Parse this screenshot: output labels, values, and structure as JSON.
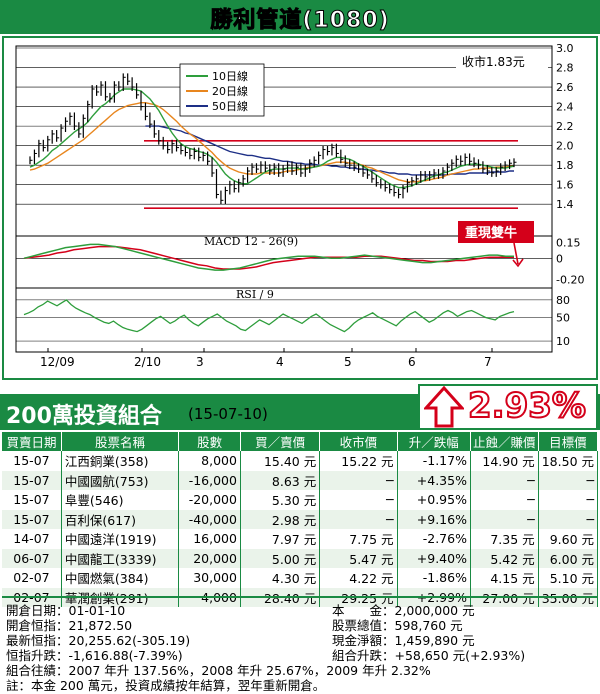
{
  "header": {
    "title": "勝利管道(1080)"
  },
  "chart_data": {
    "type": "line",
    "price_panel": {
      "close_label": "收市1.83元",
      "y_ticks": [
        1.4,
        1.6,
        1.8,
        2.0,
        2.2,
        2.4,
        2.6,
        2.8,
        3.0
      ],
      "y_tick_labels": [
        "1.4",
        "1.6",
        "1.8",
        "2.0",
        "2.2",
        "2.4",
        "2.6",
        "2.8",
        "3.0"
      ],
      "ylim": [
        1.3,
        3.0
      ],
      "legend": [
        "10日線",
        "20日線",
        "50日線"
      ],
      "series_colors": [
        "#2e9e3c",
        "#e8861e",
        "#1d2f86"
      ],
      "price_color": "#000000",
      "resistance": 2.05,
      "support": 1.36,
      "line_color": "#d4001a",
      "price": [
        1.85,
        1.92,
        2.02,
        1.98,
        2.06,
        2.12,
        2.08,
        2.18,
        2.25,
        2.3,
        2.2,
        2.12,
        2.28,
        2.42,
        2.58,
        2.55,
        2.62,
        2.5,
        2.48,
        2.62,
        2.6,
        2.7,
        2.66,
        2.6,
        2.52,
        2.4,
        2.3,
        2.22,
        2.12,
        2.05,
        2.0,
        1.96,
        2.02,
        1.98,
        1.95,
        1.93,
        1.9,
        1.94,
        1.88,
        1.9,
        1.84,
        1.72,
        1.5,
        1.44,
        1.54,
        1.6,
        1.56,
        1.62,
        1.66,
        1.74,
        1.78,
        1.76,
        1.8,
        1.77,
        1.74,
        1.78,
        1.72,
        1.76,
        1.8,
        1.74,
        1.78,
        1.72,
        1.76,
        1.82,
        1.85,
        1.9,
        1.96,
        1.94,
        1.98,
        1.92,
        1.86,
        1.82,
        1.8,
        1.78,
        1.76,
        1.72,
        1.7,
        1.66,
        1.62,
        1.6,
        1.57,
        1.55,
        1.52,
        1.5,
        1.56,
        1.62,
        1.64,
        1.66,
        1.7,
        1.68,
        1.7,
        1.72,
        1.7,
        1.74,
        1.78,
        1.82,
        1.86,
        1.84,
        1.88,
        1.84,
        1.82,
        1.8,
        1.76,
        1.74,
        1.72,
        1.74,
        1.78,
        1.8,
        1.82,
        1.83
      ],
      "ma10": [
        1.78,
        1.8,
        1.83,
        1.86,
        1.9,
        1.95,
        1.98,
        2.02,
        2.06,
        2.1,
        2.14,
        2.17,
        2.2,
        2.24,
        2.3,
        2.35,
        2.4,
        2.43,
        2.47,
        2.52,
        2.55,
        2.58,
        2.58,
        2.58,
        2.57,
        2.56,
        2.52,
        2.48,
        2.42,
        2.36,
        2.28,
        2.2,
        2.13,
        2.07,
        2.02,
        1.99,
        1.97,
        1.96,
        1.94,
        1.93,
        1.91,
        1.88,
        1.83,
        1.77,
        1.71,
        1.67,
        1.64,
        1.62,
        1.61,
        1.61,
        1.64,
        1.67,
        1.7,
        1.73,
        1.75,
        1.76,
        1.76,
        1.76,
        1.77,
        1.77,
        1.77,
        1.76,
        1.76,
        1.77,
        1.78,
        1.79,
        1.81,
        1.84,
        1.86,
        1.88,
        1.88,
        1.87,
        1.86,
        1.84,
        1.81,
        1.79,
        1.76,
        1.73,
        1.7,
        1.67,
        1.64,
        1.61,
        1.59,
        1.57,
        1.57,
        1.58,
        1.59,
        1.61,
        1.63,
        1.65,
        1.67,
        1.69,
        1.7,
        1.72,
        1.73,
        1.75,
        1.77,
        1.79,
        1.8,
        1.81,
        1.81,
        1.81,
        1.8,
        1.79,
        1.78,
        1.77,
        1.77,
        1.77,
        1.78,
        1.79
      ],
      "ma20": [
        1.75,
        1.76,
        1.78,
        1.8,
        1.82,
        1.85,
        1.88,
        1.91,
        1.94,
        1.97,
        2.0,
        2.03,
        2.06,
        2.1,
        2.14,
        2.18,
        2.22,
        2.26,
        2.3,
        2.34,
        2.37,
        2.39,
        2.41,
        2.42,
        2.43,
        2.44,
        2.44,
        2.43,
        2.42,
        2.4,
        2.37,
        2.33,
        2.29,
        2.25,
        2.2,
        2.16,
        2.12,
        2.09,
        2.05,
        2.01,
        1.97,
        1.93,
        1.88,
        1.84,
        1.8,
        1.77,
        1.75,
        1.73,
        1.72,
        1.71,
        1.71,
        1.71,
        1.72,
        1.72,
        1.72,
        1.72,
        1.72,
        1.73,
        1.74,
        1.74,
        1.75,
        1.76,
        1.77,
        1.78,
        1.78,
        1.79,
        1.8,
        1.81,
        1.82,
        1.83,
        1.83,
        1.83,
        1.82,
        1.82,
        1.81,
        1.8,
        1.78,
        1.77,
        1.75,
        1.73,
        1.71,
        1.69,
        1.67,
        1.65,
        1.64,
        1.63,
        1.63,
        1.63,
        1.64,
        1.64,
        1.65,
        1.66,
        1.67,
        1.68,
        1.7,
        1.71,
        1.72,
        1.73,
        1.74,
        1.75,
        1.76,
        1.76,
        1.77,
        1.77,
        1.77,
        1.78,
        1.78,
        1.78,
        1.79,
        1.79
      ],
      "ma50": [
        null,
        null,
        null,
        null,
        null,
        null,
        null,
        null,
        null,
        null,
        null,
        null,
        null,
        null,
        null,
        null,
        null,
        null,
        null,
        null,
        null,
        null,
        null,
        null,
        null,
        null,
        2.2,
        2.2,
        2.2,
        2.2,
        2.19,
        2.18,
        2.17,
        2.16,
        2.15,
        2.13,
        2.12,
        2.1,
        2.08,
        2.06,
        2.04,
        2.02,
        2.0,
        1.98,
        1.96,
        1.94,
        1.93,
        1.92,
        1.91,
        1.9,
        1.9,
        1.89,
        1.88,
        1.87,
        1.87,
        1.86,
        1.85,
        1.84,
        1.84,
        1.83,
        1.82,
        1.82,
        1.81,
        1.81,
        1.81,
        1.8,
        1.8,
        1.8,
        1.79,
        1.79,
        1.78,
        1.78,
        1.77,
        1.77,
        1.76,
        1.76,
        1.75,
        1.75,
        1.74,
        1.74,
        1.73,
        1.72,
        1.72,
        1.71,
        1.71,
        1.71,
        1.7,
        1.7,
        1.7,
        1.7,
        1.7,
        1.7,
        1.7,
        1.7,
        1.7,
        1.71,
        1.71,
        1.71,
        1.71,
        1.72,
        1.72,
        1.72,
        1.72,
        1.72,
        1.73,
        1.73,
        1.73,
        1.73,
        1.74,
        1.74
      ]
    },
    "macd_panel": {
      "label": "MACD 12 - 26(9)",
      "y_tick_labels": [
        "0.15",
        "0",
        "-0.20"
      ],
      "ylim": [
        -0.24,
        0.19
      ],
      "annotation": "重現雙牛",
      "macd": [
        0.0,
        0.02,
        0.04,
        0.06,
        0.08,
        0.1,
        0.11,
        0.12,
        0.13,
        0.13,
        0.12,
        0.11,
        0.09,
        0.07,
        0.05,
        0.03,
        0.01,
        -0.01,
        -0.03,
        -0.05,
        -0.07,
        -0.09,
        -0.1,
        -0.11,
        -0.11,
        -0.1,
        -0.09,
        -0.07,
        -0.05,
        -0.03,
        -0.01,
        0.0,
        0.01,
        0.02,
        0.02,
        0.02,
        0.01,
        0.0,
        0.0,
        0.01,
        0.02,
        0.03,
        0.02,
        0.01,
        0.0,
        -0.01,
        -0.02,
        -0.03,
        -0.04,
        -0.04,
        -0.03,
        -0.02,
        -0.01,
        0.0,
        0.01,
        0.02,
        0.03,
        0.03,
        0.02,
        0.02
      ],
      "signal": [
        0.0,
        0.01,
        0.02,
        0.03,
        0.05,
        0.06,
        0.08,
        0.09,
        0.1,
        0.11,
        0.11,
        0.11,
        0.1,
        0.09,
        0.08,
        0.06,
        0.04,
        0.02,
        0.0,
        -0.02,
        -0.04,
        -0.06,
        -0.07,
        -0.09,
        -0.1,
        -0.1,
        -0.1,
        -0.09,
        -0.08,
        -0.06,
        -0.04,
        -0.03,
        -0.02,
        -0.01,
        0.0,
        0.01,
        0.01,
        0.01,
        0.01,
        0.01,
        0.01,
        0.02,
        0.02,
        0.02,
        0.01,
        0.0,
        -0.01,
        -0.02,
        -0.02,
        -0.03,
        -0.03,
        -0.03,
        -0.02,
        -0.02,
        -0.01,
        0.0,
        0.01,
        0.01,
        0.01,
        0.01
      ],
      "macd_color": "#2e9e3c",
      "signal_color": "#d4001a"
    },
    "rsi_panel": {
      "label": "RSI / 9",
      "y_tick_labels": [
        "80",
        "50",
        "10"
      ],
      "ylim": [
        5,
        90
      ],
      "line_color": "#2e9e3c",
      "rsi": [
        55,
        58,
        62,
        68,
        72,
        78,
        74,
        70,
        75,
        80,
        72,
        66,
        62,
        58,
        55,
        50,
        46,
        42,
        40,
        44,
        38,
        33,
        30,
        28,
        26,
        30,
        36,
        42,
        48,
        52,
        46,
        40,
        44,
        50,
        54,
        46,
        40,
        36,
        42,
        48,
        52,
        56,
        50,
        44,
        40,
        36,
        30,
        28,
        34,
        40,
        46,
        42,
        38,
        44,
        50,
        56,
        52,
        48,
        44,
        40,
        46,
        52,
        56,
        50,
        44,
        38,
        34,
        30,
        26,
        32,
        40,
        46,
        50,
        54,
        58,
        52,
        48,
        44,
        40,
        36,
        44,
        50,
        56,
        60,
        54,
        48,
        42,
        46,
        52,
        58,
        62,
        58,
        52,
        56,
        60,
        62,
        58,
        54,
        50,
        48,
        46,
        52,
        55,
        58,
        60
      ]
    },
    "x_tick_labels": [
      "12/09",
      "2/10",
      "3",
      "4",
      "5",
      "6",
      "7"
    ]
  },
  "portfolio": {
    "title": "200萬投資組合",
    "date": "(15-07-10)",
    "gain": "2.93%",
    "headers": [
      "買賣日期",
      "股票名稱",
      "股數",
      "買／賣價",
      "收市價",
      "升／跌幅",
      "止蝕／賺價",
      "目標價"
    ],
    "rows": [
      [
        "15-07",
        "江西銅業(358)",
        "8,000",
        "15.40 元",
        "15.22 元",
        "-1.17%",
        "14.90 元",
        "18.50 元"
      ],
      [
        "15-07",
        "中國國航(753)",
        "-16,000",
        "8.63 元",
        "─",
        "+4.35%",
        "─",
        "─"
      ],
      [
        "15-07",
        "阜豐(546)",
        "-20,000",
        "5.30 元",
        "─",
        "+0.95%",
        "─",
        "─"
      ],
      [
        "15-07",
        "百利保(617)",
        "-40,000",
        "2.98 元",
        "─",
        "+9.16%",
        "─",
        "─"
      ],
      [
        "14-07",
        "中國遠洋(1919)",
        "16,000",
        "7.97 元",
        "7.75 元",
        "-2.76%",
        "7.35 元",
        "9.60 元"
      ],
      [
        "06-07",
        "中國龍工(3339)",
        "20,000",
        "5.00 元",
        "5.47 元",
        "+9.40%",
        "5.42 元",
        "6.00 元"
      ],
      [
        "02-07",
        "中國燃氣(384)",
        "30,000",
        "4.30 元",
        "4.22 元",
        "-1.86%",
        "4.15 元",
        "5.10 元"
      ],
      [
        "02-07",
        "華潤創業(291)",
        "4,000",
        "28.40 元",
        "29.25 元",
        "+2.99%",
        "27.00 元",
        "35.00 元"
      ]
    ]
  },
  "summary": {
    "open_date": "開倉日期：01-01-10",
    "open_index": "開倉恒指：21,872.50",
    "latest_index": "最新恒指：20,255.62(-305.19)",
    "index_change": "恒指升跌：-1,616.88(-7.39%)",
    "capital": "本　　金：2,000,000 元",
    "stock_value": "股票總值：598,760 元",
    "cash": "現金淨額：1,459,890 元",
    "portfolio_change": "組合升跌：+58,650 元(+2.93%)",
    "history": "組合往績：2007 年升 137.56%，2008 年升 25.67%，2009 年升 2.32%",
    "note": "註：本金 200 萬元，投資成績按年結算，翌年重新開倉。"
  }
}
